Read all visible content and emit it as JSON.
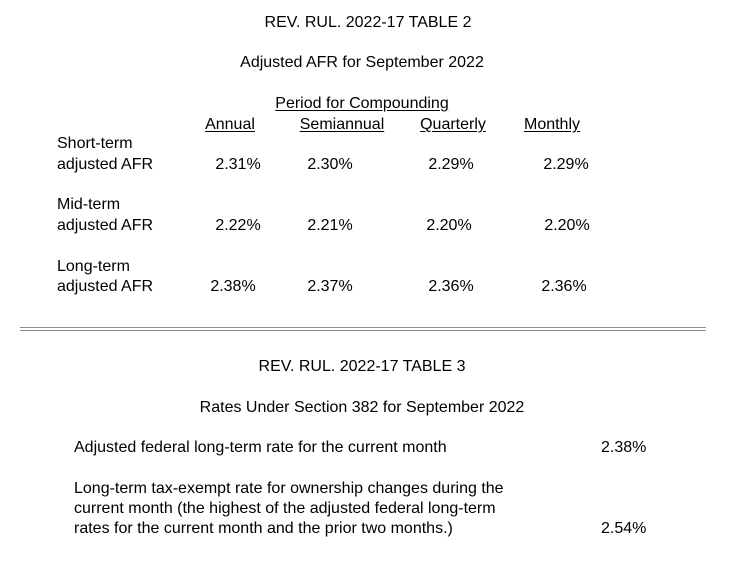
{
  "table2": {
    "title": "REV. RUL. 2022-17 TABLE 2",
    "subtitle": "Adjusted AFR for September 2022",
    "group_header": "Period for Compounding",
    "columns": [
      "Annual",
      "Semiannual",
      "Quarterly",
      "Monthly"
    ],
    "rows": [
      {
        "label_line1": "Short-term",
        "label_line2": "adjusted AFR",
        "values": [
          "2.31%",
          "2.30%",
          "2.29%",
          "2.29%"
        ]
      },
      {
        "label_line1": "Mid-term",
        "label_line2": "adjusted AFR",
        "values": [
          "2.22%",
          "2.21%",
          "2.20%",
          "2.20%"
        ]
      },
      {
        "label_line1": "Long-term",
        "label_line2": "adjusted AFR",
        "values": [
          "2.38%",
          "2.37%",
          "2.36%",
          "2.36%"
        ]
      }
    ]
  },
  "table3": {
    "title": "REV. RUL. 2022-17 TABLE 3",
    "subtitle": "Rates Under Section 382 for September 2022",
    "items": [
      {
        "lines": [
          "Adjusted federal long-term rate for the current month"
        ],
        "value": "2.38%"
      },
      {
        "lines": [
          "Long-term tax-exempt rate for ownership changes during the",
          "current month (the highest of the adjusted federal long-term",
          "rates for the current month and the prior two months.)"
        ],
        "value": "2.54%"
      }
    ]
  }
}
